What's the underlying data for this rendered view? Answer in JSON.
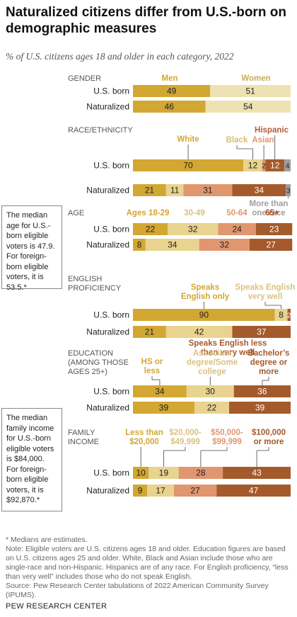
{
  "title": "Naturalized citizens differ from U.S.-born on demographic measures",
  "subtitle": "% of U.S. citizens ages 18 and older in each category, 2022",
  "callouts": {
    "age": "The median age for U.S.-born eligible voters is 47.9. For foreign-born eligible voters, it is 53.5.*",
    "income": "The median family income for U.S.-born eligible voters is $84,000. For foreign-born eligible voters, it is $92,870.*"
  },
  "notes": {
    "asterisk": "* Medians are estimates.",
    "note": "Note: Eligible voters are U.S. citizens ages 18 and older. Education figures are based on U.S. citizens ages 25 and older. White, Black and Asian include those who are single-race and non-Hispanic. Hispanics are of any race. For English proficiency, “less than very well” includes those who do not speak English.",
    "source": "Source: Pew Research Center tabulations of 2022 American Community Survey (IPUMS)."
  },
  "footer": "PEW RESEARCH CENTER",
  "colors": {
    "gold": "#D2A732",
    "light_gold": "#E8D38F",
    "salmon": "#E0966F",
    "brown": "#A55A2B",
    "gray": "#9E9E9E",
    "pale": "#EEE2B2"
  },
  "chart_data": {
    "type": "bar",
    "orientation": "horizontal-stacked",
    "ylim": [
      0,
      100
    ],
    "row_labels": [
      "U.S. born",
      "Naturalized"
    ],
    "sections": [
      {
        "name": "GENDER",
        "categories": [
          "Men",
          "Women"
        ],
        "series": [
          {
            "name": "Men",
            "values": [
              49,
              46
            ]
          },
          {
            "name": "Women",
            "values": [
              51,
              54
            ]
          }
        ]
      },
      {
        "name": "RACE/ETHNICITY",
        "categories": [
          "White",
          "Black",
          "Asian",
          "Hispanic",
          "More than one race"
        ],
        "series": [
          {
            "name": "White",
            "values": [
              70,
              21
            ]
          },
          {
            "name": "Black",
            "values": [
              12,
              11
            ]
          },
          {
            "name": "Asian",
            "values": [
              2,
              31
            ]
          },
          {
            "name": "Hispanic",
            "values": [
              12,
              34
            ]
          },
          {
            "name": "More than one race",
            "values": [
              4,
              3
            ]
          }
        ]
      },
      {
        "name": "AGE",
        "categories": [
          "Ages 18-29",
          "30-49",
          "50-64",
          "65+"
        ],
        "series": [
          {
            "name": "Ages 18-29",
            "values": [
              22,
              8
            ]
          },
          {
            "name": "30-49",
            "values": [
              32,
              34
            ]
          },
          {
            "name": "50-64",
            "values": [
              24,
              32
            ]
          },
          {
            "name": "65+",
            "values": [
              23,
              27
            ]
          }
        ]
      },
      {
        "name": "ENGLISH PROFICIENCY",
        "categories": [
          "Speaks English only",
          "Speaks English very well",
          "Speaks English less than very well"
        ],
        "series": [
          {
            "name": "Speaks English only",
            "values": [
              90,
              21
            ]
          },
          {
            "name": "Speaks English very well",
            "values": [
              8,
              42
            ]
          },
          {
            "name": "Speaks English less than very well",
            "values": [
              2,
              37
            ]
          }
        ]
      },
      {
        "name": "EDUCATION (AMONG THOSE AGES 25+)",
        "categories": [
          "HS or less",
          "Associate degree/Some college",
          "Bachelor’s degree or more"
        ],
        "series": [
          {
            "name": "HS or less",
            "values": [
              34,
              39
            ]
          },
          {
            "name": "Associate degree/Some college",
            "values": [
              30,
              22
            ]
          },
          {
            "name": "Bachelor’s degree or more",
            "values": [
              36,
              39
            ]
          }
        ]
      },
      {
        "name": "FAMILY INCOME",
        "categories": [
          "Less than $20,000",
          "$20,000-$49,999",
          "$50,000-$99,999",
          "$100,000 or more"
        ],
        "series": [
          {
            "name": "Less than $20,000",
            "values": [
              10,
              9
            ]
          },
          {
            "name": "$20,000-$49,999",
            "values": [
              19,
              17
            ]
          },
          {
            "name": "$50,000-$99,999",
            "values": [
              28,
              27
            ]
          },
          {
            "name": "$100,000 or more",
            "values": [
              43,
              47
            ]
          }
        ]
      }
    ]
  }
}
